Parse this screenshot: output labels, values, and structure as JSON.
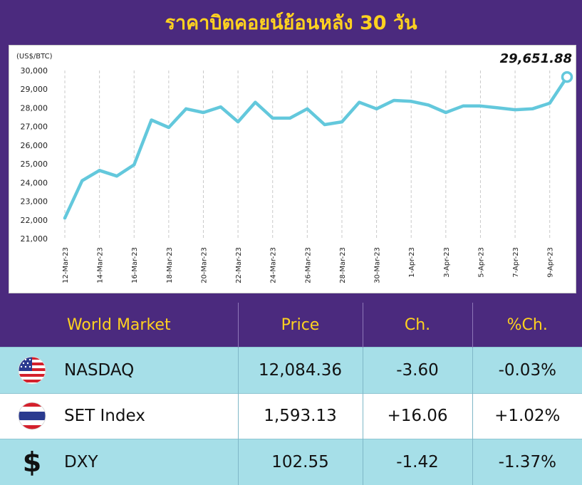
{
  "header": {
    "title": "ราคาบิตคอยน์ย้อนหลัง 30 วัน"
  },
  "chart_data": {
    "type": "line",
    "unit_label": "(US$/BTC)",
    "last_value_label": "29,651.88",
    "line_color": "#63c8dc",
    "x": [
      "12-Mar-23",
      "13-Mar-23",
      "14-Mar-23",
      "15-Mar-23",
      "16-Mar-23",
      "17-Mar-23",
      "18-Mar-23",
      "19-Mar-23",
      "20-Mar-23",
      "21-Mar-23",
      "22-Mar-23",
      "23-Mar-23",
      "24-Mar-23",
      "25-Mar-23",
      "26-Mar-23",
      "27-Mar-23",
      "28-Mar-23",
      "29-Mar-23",
      "30-Mar-23",
      "31-Mar-23",
      "1-Apr-23",
      "2-Apr-23",
      "3-Apr-23",
      "4-Apr-23",
      "5-Apr-23",
      "6-Apr-23",
      "7-Apr-23",
      "8-Apr-23",
      "9-Apr-23",
      "10-Apr-23"
    ],
    "x_tick_labels": [
      "12-Mar-23",
      "14-Mar-23",
      "16-Mar-23",
      "18-Mar-23",
      "20-Mar-23",
      "22-Mar-23",
      "24-Mar-23",
      "26-Mar-23",
      "28-Mar-23",
      "30-Mar-23",
      "1-Apr-23",
      "3-Apr-23",
      "5-Apr-23",
      "7-Apr-23",
      "9-Apr-23"
    ],
    "values": [
      22100,
      24100,
      24650,
      24350,
      24950,
      27350,
      26950,
      27950,
      27750,
      28050,
      27250,
      28300,
      27450,
      27450,
      27950,
      27100,
      27250,
      28300,
      27950,
      28400,
      28350,
      28150,
      27750,
      28100,
      28100,
      28000,
      27900,
      27950,
      28250,
      29651.88
    ],
    "y_ticks": [
      "30,000",
      "29,000",
      "28,000",
      "27,000",
      "26,000",
      "25,000",
      "24,000",
      "23,000",
      "22,000",
      "21,000"
    ],
    "ylim": [
      21000,
      30000
    ],
    "grid": "vertical-dashed"
  },
  "market_table": {
    "headers": [
      "World Market",
      "Price",
      "Ch.",
      "%Ch."
    ],
    "rows": [
      {
        "icon": "us-flag-icon",
        "name": "NASDAQ",
        "price": "12,084.36",
        "change": "-3.60",
        "pct": "-0.03%"
      },
      {
        "icon": "thai-flag-icon",
        "name": "SET Index",
        "price": "1,593.13",
        "change": "+16.06",
        "pct": "+1.02%"
      },
      {
        "icon": "dollar-icon",
        "icon_symbol": "$",
        "name": "DXY",
        "price": "102.55",
        "change": "-1.42",
        "pct": "-1.37%"
      }
    ]
  }
}
